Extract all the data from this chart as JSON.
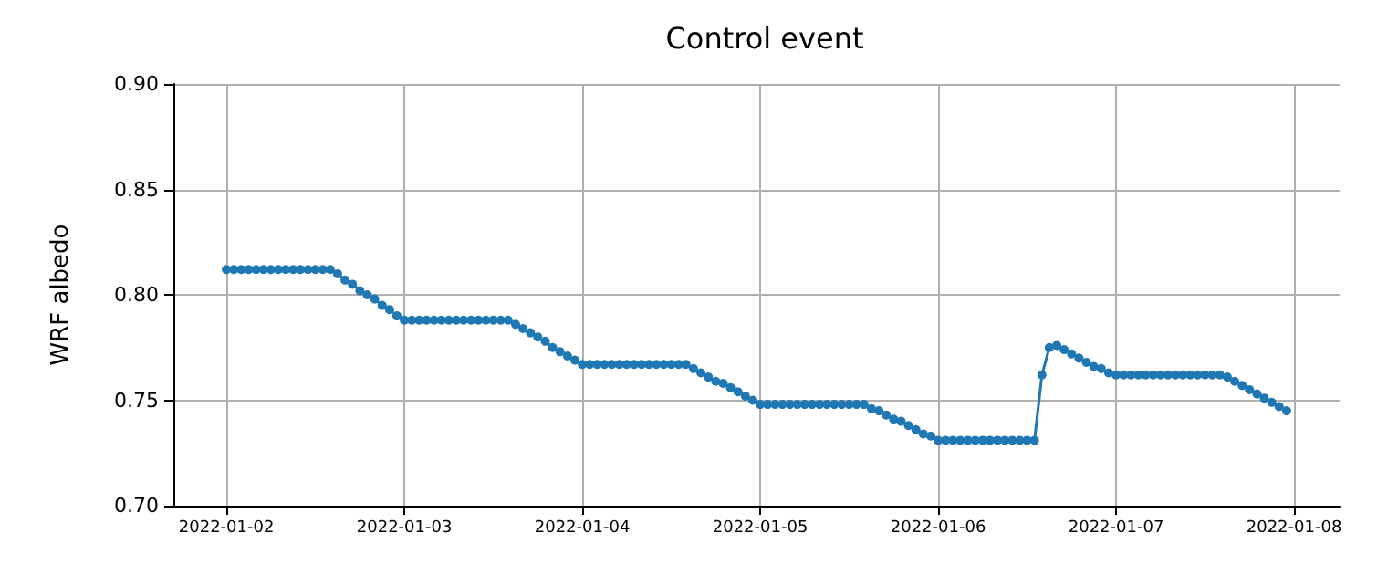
{
  "chart_data": {
    "type": "line",
    "title": "Control event",
    "ylabel": "WRF albedo",
    "x": [
      "2022-01-02T00:00",
      "2022-01-02T01:00",
      "2022-01-02T02:00",
      "2022-01-02T03:00",
      "2022-01-02T04:00",
      "2022-01-02T05:00",
      "2022-01-02T06:00",
      "2022-01-02T07:00",
      "2022-01-02T08:00",
      "2022-01-02T09:00",
      "2022-01-02T10:00",
      "2022-01-02T11:00",
      "2022-01-02T12:00",
      "2022-01-02T13:00",
      "2022-01-02T14:00",
      "2022-01-02T15:00",
      "2022-01-02T16:00",
      "2022-01-02T17:00",
      "2022-01-02T18:00",
      "2022-01-02T19:00",
      "2022-01-02T20:00",
      "2022-01-02T21:00",
      "2022-01-02T22:00",
      "2022-01-02T23:00",
      "2022-01-03T00:00",
      "2022-01-03T01:00",
      "2022-01-03T02:00",
      "2022-01-03T03:00",
      "2022-01-03T04:00",
      "2022-01-03T05:00",
      "2022-01-03T06:00",
      "2022-01-03T07:00",
      "2022-01-03T08:00",
      "2022-01-03T09:00",
      "2022-01-03T10:00",
      "2022-01-03T11:00",
      "2022-01-03T12:00",
      "2022-01-03T13:00",
      "2022-01-03T14:00",
      "2022-01-03T15:00",
      "2022-01-03T16:00",
      "2022-01-03T17:00",
      "2022-01-03T18:00",
      "2022-01-03T19:00",
      "2022-01-03T20:00",
      "2022-01-03T21:00",
      "2022-01-03T22:00",
      "2022-01-03T23:00",
      "2022-01-04T00:00",
      "2022-01-04T01:00",
      "2022-01-04T02:00",
      "2022-01-04T03:00",
      "2022-01-04T04:00",
      "2022-01-04T05:00",
      "2022-01-04T06:00",
      "2022-01-04T07:00",
      "2022-01-04T08:00",
      "2022-01-04T09:00",
      "2022-01-04T10:00",
      "2022-01-04T11:00",
      "2022-01-04T12:00",
      "2022-01-04T13:00",
      "2022-01-04T14:00",
      "2022-01-04T15:00",
      "2022-01-04T16:00",
      "2022-01-04T17:00",
      "2022-01-04T18:00",
      "2022-01-04T19:00",
      "2022-01-04T20:00",
      "2022-01-04T21:00",
      "2022-01-04T22:00",
      "2022-01-04T23:00",
      "2022-01-05T00:00",
      "2022-01-05T01:00",
      "2022-01-05T02:00",
      "2022-01-05T03:00",
      "2022-01-05T04:00",
      "2022-01-05T05:00",
      "2022-01-05T06:00",
      "2022-01-05T07:00",
      "2022-01-05T08:00",
      "2022-01-05T09:00",
      "2022-01-05T10:00",
      "2022-01-05T11:00",
      "2022-01-05T12:00",
      "2022-01-05T13:00",
      "2022-01-05T14:00",
      "2022-01-05T15:00",
      "2022-01-05T16:00",
      "2022-01-05T17:00",
      "2022-01-05T18:00",
      "2022-01-05T19:00",
      "2022-01-05T20:00",
      "2022-01-05T21:00",
      "2022-01-05T22:00",
      "2022-01-05T23:00",
      "2022-01-06T00:00",
      "2022-01-06T01:00",
      "2022-01-06T02:00",
      "2022-01-06T03:00",
      "2022-01-06T04:00",
      "2022-01-06T05:00",
      "2022-01-06T06:00",
      "2022-01-06T07:00",
      "2022-01-06T08:00",
      "2022-01-06T09:00",
      "2022-01-06T10:00",
      "2022-01-06T11:00",
      "2022-01-06T12:00",
      "2022-01-06T13:00",
      "2022-01-06T14:00",
      "2022-01-06T15:00",
      "2022-01-06T16:00",
      "2022-01-06T17:00",
      "2022-01-06T18:00",
      "2022-01-06T19:00",
      "2022-01-06T20:00",
      "2022-01-06T21:00",
      "2022-01-06T22:00",
      "2022-01-06T23:00",
      "2022-01-07T00:00",
      "2022-01-07T01:00",
      "2022-01-07T02:00",
      "2022-01-07T03:00",
      "2022-01-07T04:00",
      "2022-01-07T05:00",
      "2022-01-07T06:00",
      "2022-01-07T07:00",
      "2022-01-07T08:00",
      "2022-01-07T09:00",
      "2022-01-07T10:00",
      "2022-01-07T11:00",
      "2022-01-07T12:00",
      "2022-01-07T13:00",
      "2022-01-07T14:00",
      "2022-01-07T15:00",
      "2022-01-07T16:00",
      "2022-01-07T17:00",
      "2022-01-07T18:00",
      "2022-01-07T19:00",
      "2022-01-07T20:00",
      "2022-01-07T21:00",
      "2022-01-07T22:00",
      "2022-01-07T23:00"
    ],
    "series": [
      {
        "color": "#1f77b4",
        "values": [
          0.812,
          0.812,
          0.812,
          0.812,
          0.812,
          0.812,
          0.812,
          0.812,
          0.812,
          0.812,
          0.812,
          0.812,
          0.812,
          0.812,
          0.812,
          0.81,
          0.807,
          0.805,
          0.802,
          0.8,
          0.798,
          0.795,
          0.793,
          0.79,
          0.788,
          0.788,
          0.788,
          0.788,
          0.788,
          0.788,
          0.788,
          0.788,
          0.788,
          0.788,
          0.788,
          0.788,
          0.788,
          0.788,
          0.788,
          0.786,
          0.784,
          0.782,
          0.78,
          0.778,
          0.775,
          0.773,
          0.771,
          0.769,
          0.767,
          0.767,
          0.767,
          0.767,
          0.767,
          0.767,
          0.767,
          0.767,
          0.767,
          0.767,
          0.767,
          0.767,
          0.767,
          0.767,
          0.767,
          0.765,
          0.763,
          0.761,
          0.759,
          0.758,
          0.756,
          0.754,
          0.752,
          0.75,
          0.748,
          0.748,
          0.748,
          0.748,
          0.748,
          0.748,
          0.748,
          0.748,
          0.748,
          0.748,
          0.748,
          0.748,
          0.748,
          0.748,
          0.748,
          0.746,
          0.745,
          0.743,
          0.741,
          0.74,
          0.738,
          0.736,
          0.734,
          0.733,
          0.731,
          0.731,
          0.731,
          0.731,
          0.731,
          0.731,
          0.731,
          0.731,
          0.731,
          0.731,
          0.731,
          0.731,
          0.731,
          0.731,
          0.762,
          0.775,
          0.776,
          0.774,
          0.772,
          0.77,
          0.768,
          0.766,
          0.765,
          0.763,
          0.762,
          0.762,
          0.762,
          0.762,
          0.762,
          0.762,
          0.762,
          0.762,
          0.762,
          0.762,
          0.762,
          0.762,
          0.762,
          0.762,
          0.762,
          0.761,
          0.759,
          0.757,
          0.755,
          0.753,
          0.751,
          0.749,
          0.747,
          0.745
        ]
      }
    ],
    "xlim": [
      "2022-01-01T16:51",
      "2022-01-08T06:09"
    ],
    "xticks": [
      "2022-01-02",
      "2022-01-03",
      "2022-01-04",
      "2022-01-05",
      "2022-01-06",
      "2022-01-07",
      "2022-01-08"
    ],
    "ylim": [
      0.7,
      0.9
    ],
    "yticks": [
      {
        "value": 0.7,
        "label": "0.70"
      },
      {
        "value": 0.75,
        "label": "0.75"
      },
      {
        "value": 0.8,
        "label": "0.80"
      },
      {
        "value": 0.85,
        "label": "0.85"
      },
      {
        "value": 0.9,
        "label": "0.90"
      }
    ],
    "grid": true,
    "marker": "circle",
    "line_style": "solid"
  }
}
